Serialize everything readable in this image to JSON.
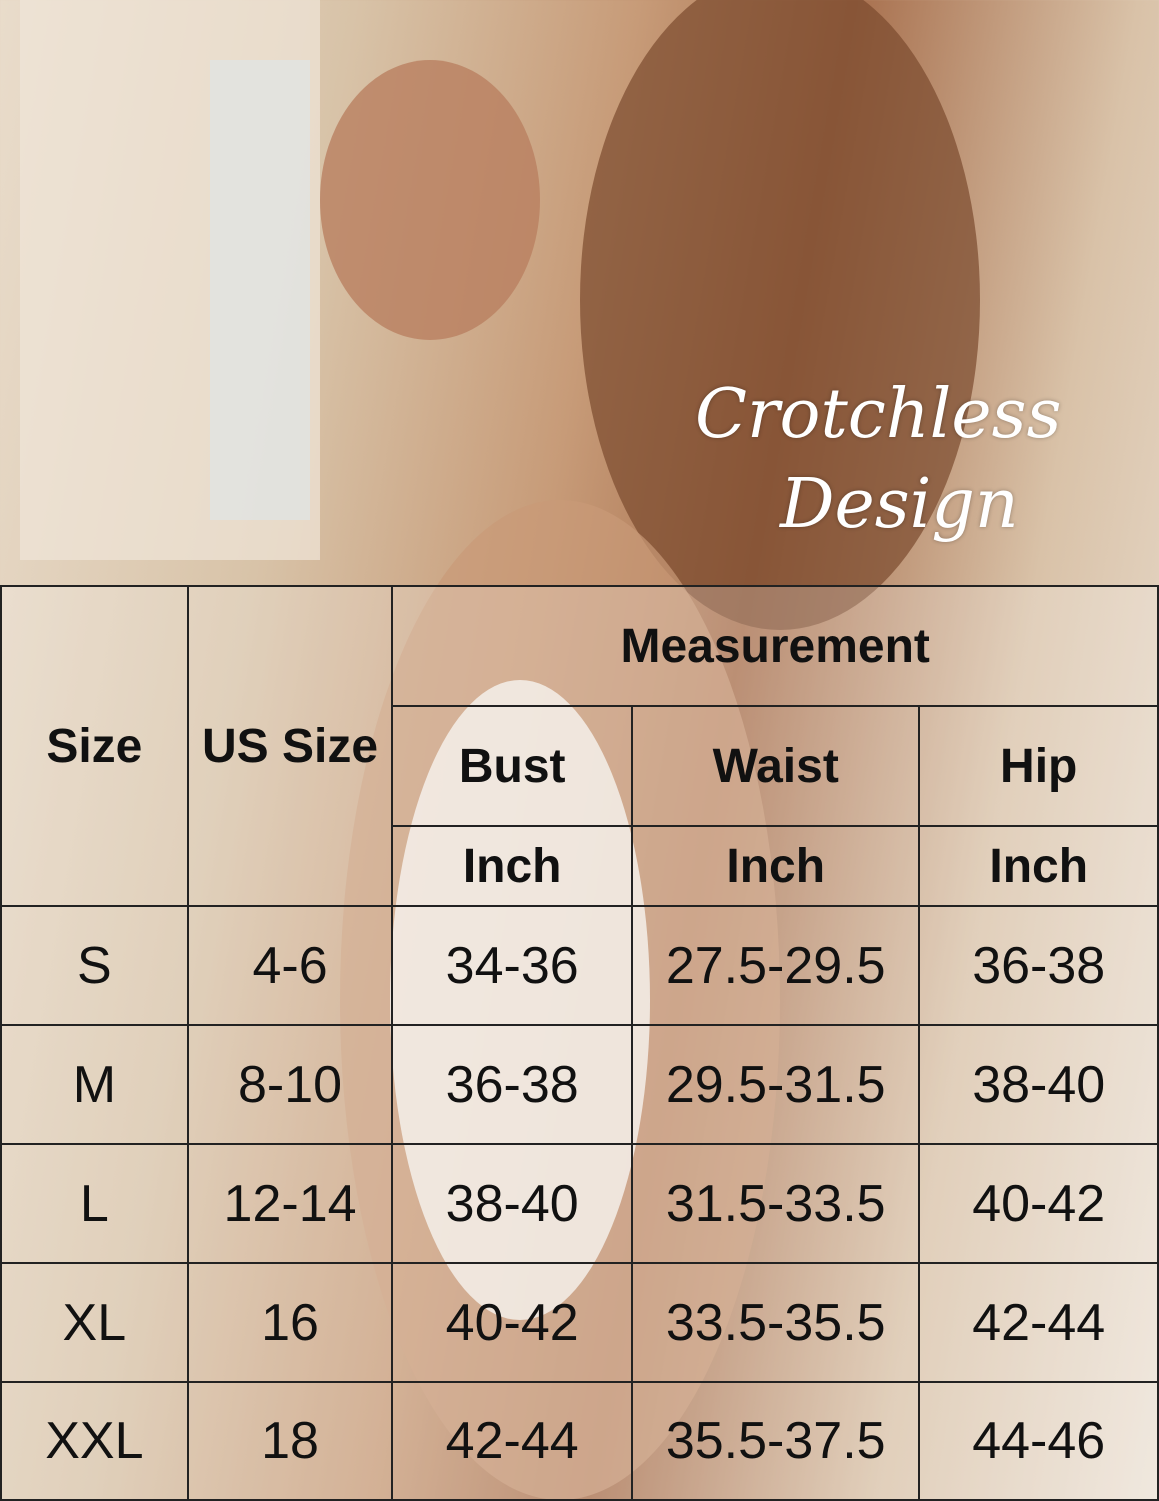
{
  "overlay_text": {
    "line1": "Crotchless",
    "line2": "Design"
  },
  "size_chart": {
    "headers": {
      "size": "Size",
      "us_size": "US Size",
      "measurement": "Measurement",
      "bust": "Bust",
      "waist": "Waist",
      "hip": "Hip",
      "unit": "Inch"
    },
    "rows": [
      {
        "size": "S",
        "us": "4-6",
        "bust": "34-36",
        "waist": "27.5-29.5",
        "hip": "36-38"
      },
      {
        "size": "M",
        "us": "8-10",
        "bust": "36-38",
        "waist": "29.5-31.5",
        "hip": "38-40"
      },
      {
        "size": "L",
        "us": "12-14",
        "bust": "38-40",
        "waist": "31.5-33.5",
        "hip": "40-42"
      },
      {
        "size": "XL",
        "us": "16",
        "bust": "40-42",
        "waist": "33.5-35.5",
        "hip": "42-44"
      },
      {
        "size": "XXL",
        "us": "18",
        "bust": "42-44",
        "waist": "35.5-37.5",
        "hip": "44-46"
      }
    ]
  }
}
